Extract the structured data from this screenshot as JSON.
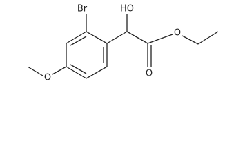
{
  "atoms": {
    "bromine": "Br",
    "hydroxyl": "HO",
    "ester_oxygen": "O",
    "carbonyl_oxygen": "O",
    "methoxy_oxygen": "O"
  }
}
